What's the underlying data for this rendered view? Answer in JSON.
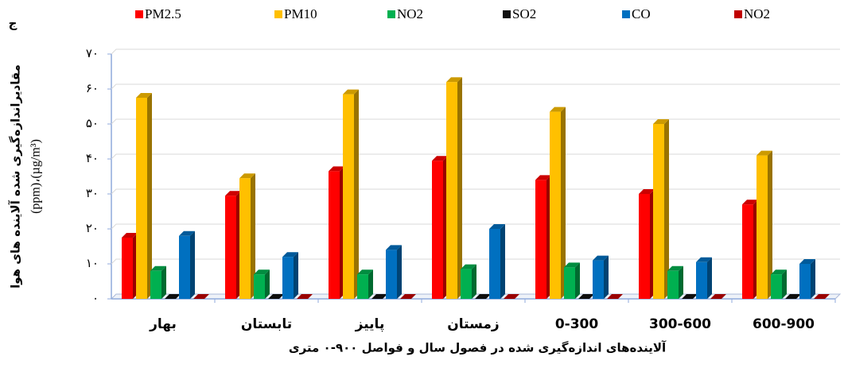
{
  "chart_data": {
    "type": "bar3d",
    "corner_label": "ج",
    "x_label": "آلاینده‌های اندازه‌گیری شده در فصول سال و فواصل ۹۰۰-۰ متری",
    "y_label": [
      "مقادیراندازه‌گیری شده آلاینده های هوا",
      "(ppm)،(µg/m³)"
    ],
    "categories": [
      "بهار",
      "تابستان",
      "پاییز",
      "زمستان",
      "0-300",
      "300-600",
      "600-900"
    ],
    "series": [
      {
        "name": "PM2.5",
        "color": "#ff0000",
        "values": [
          17.5,
          29.5,
          36.5,
          39.5,
          34,
          30,
          27
        ]
      },
      {
        "name": "PM10",
        "color": "#ffc000",
        "values": [
          57.5,
          34.5,
          58.5,
          62,
          53.5,
          50,
          41
        ]
      },
      {
        "name": "NO2",
        "color": "#00b050",
        "values": [
          8,
          7,
          7,
          8.5,
          9,
          8,
          7
        ]
      },
      {
        "name": "SO2",
        "color": "#111111",
        "values": [
          0,
          0,
          0,
          0,
          0,
          0,
          0
        ]
      },
      {
        "name": "CO",
        "color": "#0070c0",
        "values": [
          18,
          12,
          14,
          20,
          11,
          10.5,
          10
        ]
      },
      {
        "name": "NO2",
        "color": "#c00000",
        "values": [
          0,
          0,
          0,
          0,
          0,
          0,
          0
        ]
      }
    ],
    "ylim": [
      0,
      70
    ],
    "yticks": [
      {
        "value": 0,
        "label": "۰"
      },
      {
        "value": 10,
        "label": "۱۰"
      },
      {
        "value": 20,
        "label": "۲۰"
      },
      {
        "value": 30,
        "label": "۳۰"
      },
      {
        "value": 40,
        "label": "۴۰"
      },
      {
        "value": 50,
        "label": "۵۰"
      },
      {
        "value": 60,
        "label": "۶۰"
      },
      {
        "value": 70,
        "label": "۷۰"
      }
    ],
    "grid": true
  }
}
